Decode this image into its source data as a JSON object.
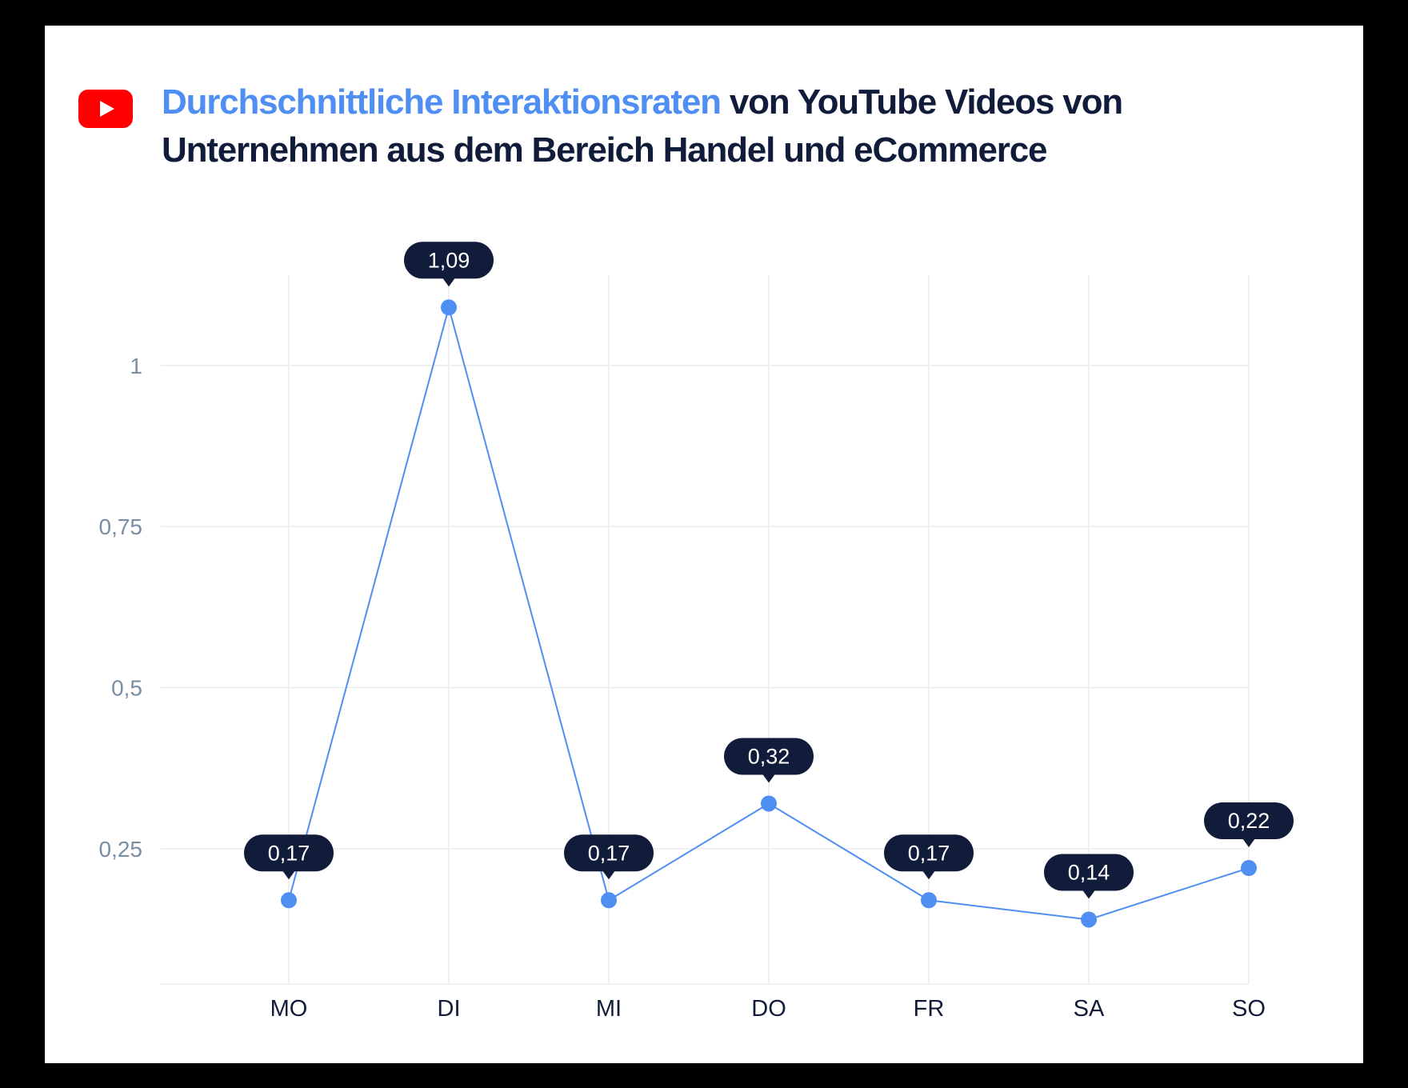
{
  "header": {
    "title_highlight": "Durchschnittliche Interaktionsraten",
    "title_rest": " von YouTube Videos von Unternehmen aus dem Bereich Handel und eCommerce",
    "logo_icon": "youtube-play-icon"
  },
  "colors": {
    "accent": "#4f8ef2",
    "title_dark": "#111c3a",
    "label_bg": "#111c3a",
    "grid": "#ececf0",
    "axis_text": "#7a8ea3",
    "youtube_red": "#ff0000"
  },
  "chart_data": {
    "type": "line",
    "categories": [
      "MO",
      "DI",
      "MI",
      "DO",
      "FR",
      "SA",
      "SO"
    ],
    "values": [
      0.17,
      1.09,
      0.17,
      0.32,
      0.17,
      0.14,
      0.22
    ],
    "data_labels": [
      "0,17",
      "1,09",
      "0,17",
      "0,32",
      "0,17",
      "0,14",
      "0,22"
    ],
    "yticks": [
      0.25,
      0.5,
      0.75,
      1
    ],
    "ytick_labels": [
      "0,25",
      "0,5",
      "0,75",
      "1"
    ],
    "ylim": [
      0.04,
      1.14
    ],
    "grid": true,
    "legend": "none"
  }
}
